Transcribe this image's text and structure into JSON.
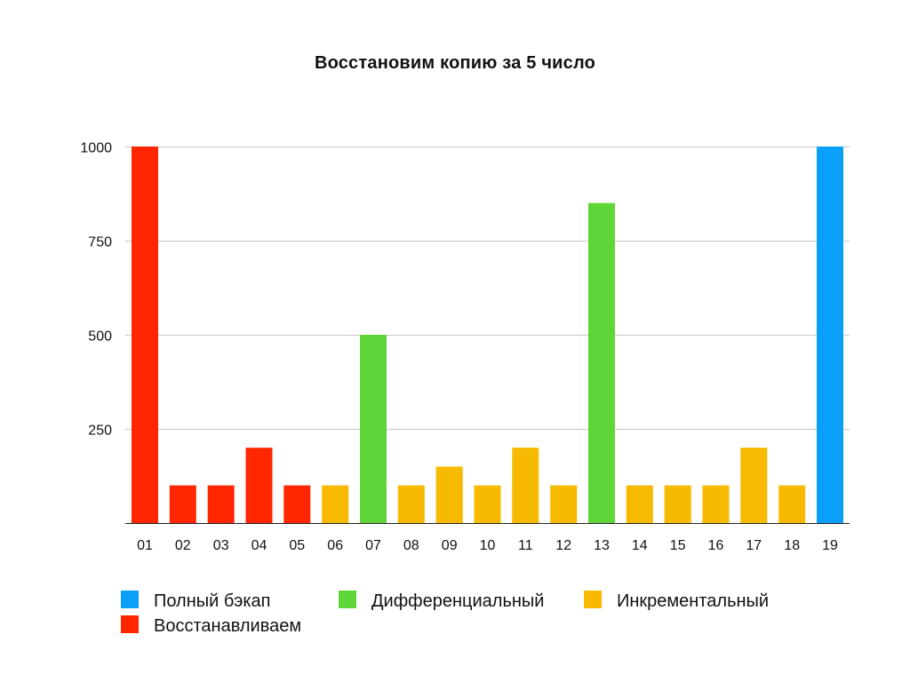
{
  "chart_data": {
    "type": "bar",
    "title": "Восстановим копию за 5 число",
    "xlabel": "",
    "ylabel": "",
    "categories": [
      "01",
      "02",
      "03",
      "04",
      "05",
      "06",
      "07",
      "08",
      "09",
      "10",
      "11",
      "12",
      "13",
      "14",
      "15",
      "16",
      "17",
      "18",
      "19"
    ],
    "values": [
      1000,
      100,
      100,
      200,
      100,
      100,
      500,
      100,
      150,
      100,
      200,
      100,
      850,
      100,
      100,
      100,
      200,
      100,
      1000
    ],
    "value_types": [
      "restore",
      "restore",
      "restore",
      "restore",
      "restore",
      "incremental",
      "differential",
      "incremental",
      "incremental",
      "incremental",
      "incremental",
      "incremental",
      "differential",
      "incremental",
      "incremental",
      "incremental",
      "incremental",
      "incremental",
      "full"
    ],
    "ylim": [
      0,
      1000
    ],
    "yticks": [
      250,
      500,
      750,
      1000
    ],
    "ytick_labels": [
      "250",
      "500",
      "750",
      "1000"
    ],
    "grid": true,
    "legend_placement": "bottom",
    "legend": [
      {
        "key": "full",
        "label": "Полный бэкап",
        "color": "#0a9ff8"
      },
      {
        "key": "differential",
        "label": "Дифференциальный",
        "color": "#5fd637"
      },
      {
        "key": "incremental",
        "label": "Инкрементальный",
        "color": "#f7ba00"
      },
      {
        "key": "restore",
        "label": "Восстанавливаем",
        "color": "#ff2600"
      }
    ]
  }
}
